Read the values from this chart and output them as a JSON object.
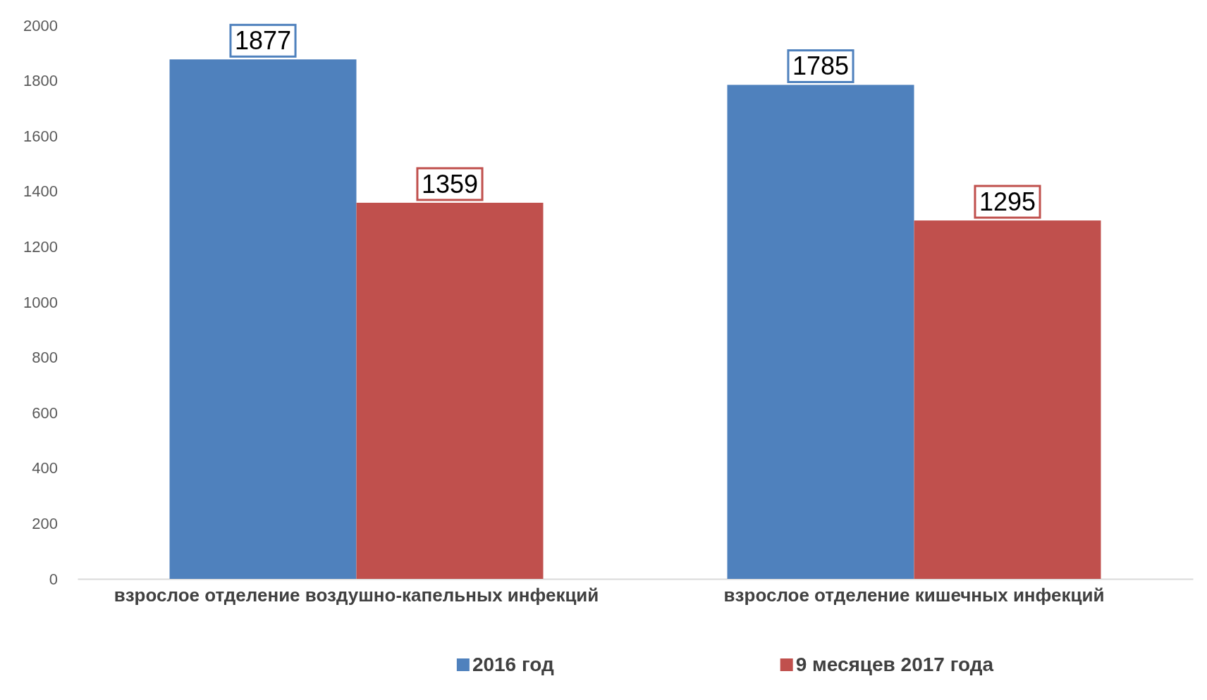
{
  "chart_data": {
    "type": "bar",
    "categories": [
      "взрослое отделение воздушно-капельных инфекций",
      "взрослое отделение кишечных инфекций"
    ],
    "series": [
      {
        "name": "2016 год",
        "color": "#4f81bd",
        "values": [
          1877,
          1785
        ]
      },
      {
        "name": "9 месяцев 2017 года",
        "color": "#c0504d",
        "values": [
          1359,
          1295
        ]
      }
    ],
    "ylim": [
      0,
      2000
    ],
    "yticks": [
      0,
      200,
      400,
      600,
      800,
      1000,
      1200,
      1400,
      1600,
      1800,
      2000
    ],
    "data_labels": true,
    "legend": "bottom"
  }
}
